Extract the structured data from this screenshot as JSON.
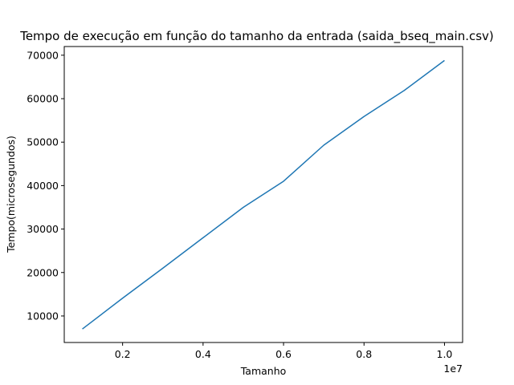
{
  "chart_data": {
    "type": "line",
    "title": "Tempo de execução em função do tamanho da entrada (saida_bseq_main.csv)",
    "xlabel": "Tamanho",
    "ylabel": "Tempo(microsegundos)",
    "x_offset_label": "1e7",
    "xlim": [
      550000,
      10450000
    ],
    "ylim": [
      3900,
      72000
    ],
    "x_ticks": [
      2000000,
      4000000,
      6000000,
      8000000,
      10000000
    ],
    "x_tick_labels": [
      "0.2",
      "0.4",
      "0.6",
      "0.8",
      "1.0"
    ],
    "y_ticks": [
      10000,
      20000,
      30000,
      40000,
      50000,
      60000,
      70000
    ],
    "y_tick_labels": [
      "10000",
      "20000",
      "30000",
      "40000",
      "50000",
      "60000",
      "70000"
    ],
    "grid": false,
    "series": [
      {
        "color": "#1f77b4",
        "x": [
          1000000,
          2000000,
          3000000,
          4000000,
          5000000,
          6000000,
          7000000,
          8000000,
          9000000,
          10000000
        ],
        "y": [
          7000,
          14100,
          21000,
          28000,
          35000,
          41000,
          49300,
          55900,
          61900,
          68800
        ]
      }
    ]
  }
}
